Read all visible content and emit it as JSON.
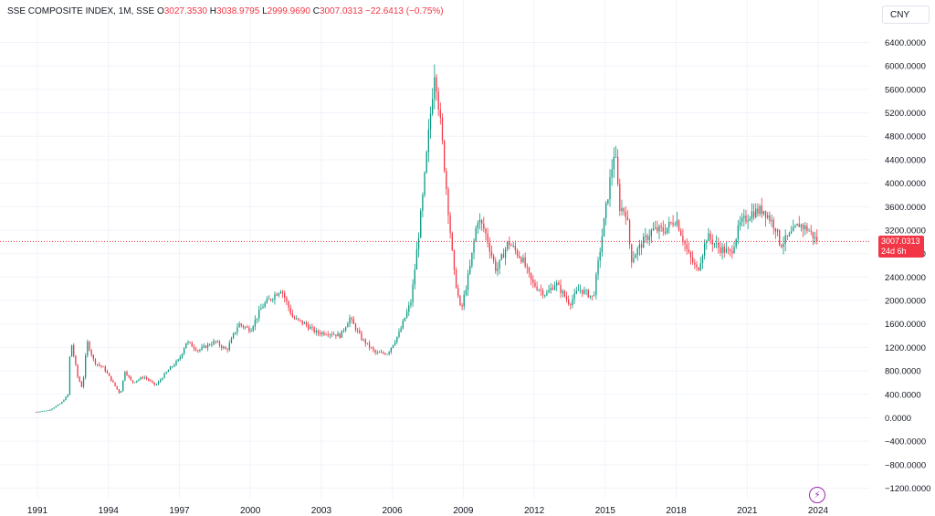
{
  "legend": {
    "title": "SSE COMPOSITE INDEX, 1M, SSE",
    "o_label": "O",
    "o_value": "3027.3530",
    "h_label": "H",
    "h_value": "3038.9795",
    "l_label": "L",
    "l_value": "2999.9690",
    "c_label": "C",
    "c_value": "3007.0313",
    "change": "−22.6413 (−0.75%)"
  },
  "currency_button": "CNY",
  "price_tag": {
    "price": "3007.0313",
    "countdown": "24d 6h"
  },
  "colors": {
    "up": "#089981",
    "down": "#f23645",
    "grid": "#f0f3fa",
    "text": "#131722",
    "accent": "#9c27b0"
  },
  "chart_data": {
    "type": "candlestick",
    "interval": "1M",
    "ylim": [
      -1300,
      6600
    ],
    "xlim": [
      1990.8,
      2024.9
    ],
    "y_ticks": [
      6400,
      6000,
      5600,
      5200,
      4800,
      4400,
      4000,
      3600,
      3200,
      2800,
      2400,
      2000,
      1600,
      1200,
      800,
      400,
      0,
      -400,
      -800,
      -1200
    ],
    "y_tick_labels": [
      "6400.0000",
      "6000.0000",
      "5600.0000",
      "5200.0000",
      "4800.0000",
      "4400.0000",
      "4000.0000",
      "3600.0000",
      "3200.0000",
      "2800.0000",
      "2400.0000",
      "2000.0000",
      "1600.0000",
      "1200.0000",
      "800.0000",
      "400.0000",
      "0.0000",
      "−400.0000",
      "−800.0000",
      "−1200.0000"
    ],
    "x_ticks": [
      1991,
      1994,
      1997,
      2000,
      2003,
      2006,
      2009,
      2012,
      2015,
      2018,
      2021,
      2024
    ],
    "x_tick_labels": [
      "1991",
      "1994",
      "1997",
      "2000",
      "2003",
      "2006",
      "2009",
      "2012",
      "2015",
      "2018",
      "2021",
      "2024"
    ],
    "last_price": 3007.0313,
    "anchors": [
      [
        1990.95,
        100
      ],
      [
        1991.5,
        130
      ],
      [
        1992.0,
        250
      ],
      [
        1992.3,
        400
      ],
      [
        1992.4,
        1350
      ],
      [
        1992.7,
        700
      ],
      [
        1992.9,
        500
      ],
      [
        1993.1,
        1300
      ],
      [
        1993.4,
        950
      ],
      [
        1993.8,
        850
      ],
      [
        1994.5,
        400
      ],
      [
        1994.7,
        800
      ],
      [
        1995.0,
        600
      ],
      [
        1995.5,
        700
      ],
      [
        1996.0,
        550
      ],
      [
        1996.5,
        800
      ],
      [
        1997.0,
        1000
      ],
      [
        1997.3,
        1300
      ],
      [
        1997.8,
        1150
      ],
      [
        1998.5,
        1300
      ],
      [
        1999.0,
        1150
      ],
      [
        1999.5,
        1600
      ],
      [
        2000.0,
        1500
      ],
      [
        2000.5,
        1900
      ],
      [
        2001.3,
        2200
      ],
      [
        2001.8,
        1700
      ],
      [
        2002.3,
        1600
      ],
      [
        2002.8,
        1450
      ],
      [
        2003.3,
        1450
      ],
      [
        2003.8,
        1400
      ],
      [
        2004.2,
        1700
      ],
      [
        2004.7,
        1350
      ],
      [
        2005.3,
        1100
      ],
      [
        2005.8,
        1100
      ],
      [
        2006.3,
        1450
      ],
      [
        2006.8,
        2000
      ],
      [
        2007.3,
        3800
      ],
      [
        2007.8,
        6000
      ],
      [
        2008.2,
        4300
      ],
      [
        2008.6,
        2500
      ],
      [
        2008.9,
        1800
      ],
      [
        2009.3,
        2600
      ],
      [
        2009.6,
        3400
      ],
      [
        2009.9,
        3200
      ],
      [
        2010.4,
        2500
      ],
      [
        2010.9,
        3000
      ],
      [
        2011.5,
        2700
      ],
      [
        2011.9,
        2300
      ],
      [
        2012.5,
        2100
      ],
      [
        2012.9,
        2300
      ],
      [
        2013.5,
        1950
      ],
      [
        2013.9,
        2200
      ],
      [
        2014.5,
        2050
      ],
      [
        2014.9,
        3200
      ],
      [
        2015.4,
        4600
      ],
      [
        2015.6,
        3600
      ],
      [
        2015.9,
        3500
      ],
      [
        2016.1,
        2700
      ],
      [
        2016.6,
        3000
      ],
      [
        2017.0,
        3200
      ],
      [
        2017.5,
        3200
      ],
      [
        2018.0,
        3400
      ],
      [
        2018.5,
        2800
      ],
      [
        2018.9,
        2500
      ],
      [
        2019.3,
        3100
      ],
      [
        2019.8,
        2900
      ],
      [
        2020.3,
        2800
      ],
      [
        2020.7,
        3300
      ],
      [
        2021.2,
        3500
      ],
      [
        2021.7,
        3550
      ],
      [
        2022.2,
        3250
      ],
      [
        2022.4,
        2950
      ],
      [
        2022.8,
        3100
      ],
      [
        2023.2,
        3300
      ],
      [
        2023.6,
        3200
      ],
      [
        2023.95,
        3007
      ]
    ]
  }
}
